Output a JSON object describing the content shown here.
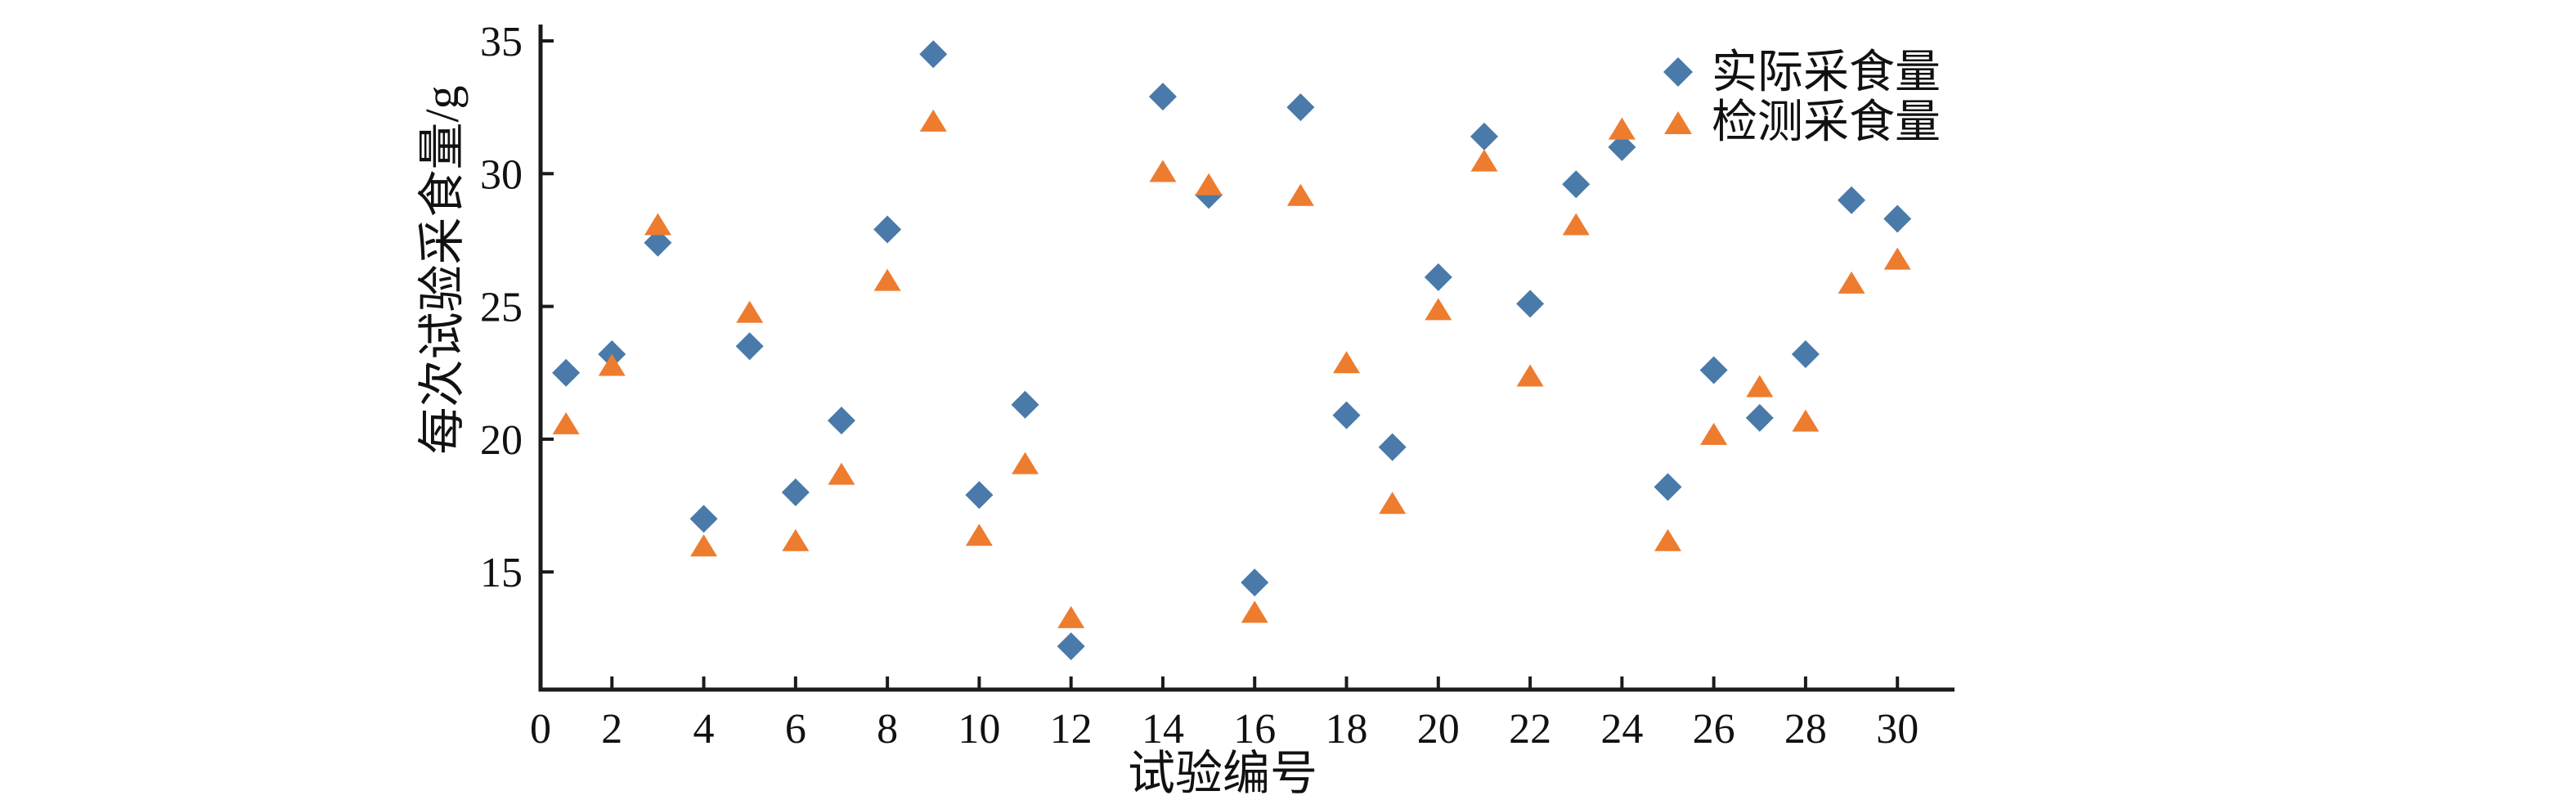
{
  "figure": {
    "background": "#ffffff",
    "axis_color": "#1a1a1a",
    "text_color": "#111111"
  },
  "chart_data": {
    "type": "scatter",
    "title": "",
    "xlabel": "试验编号",
    "ylabel": "每次试验采食量/g",
    "x_ticks": [
      0,
      2,
      4,
      6,
      8,
      10,
      12,
      14,
      16,
      18,
      20,
      22,
      24,
      26,
      28,
      30
    ],
    "y_ticks": [
      15,
      20,
      25,
      30,
      35
    ],
    "xlim": [
      0,
      31.2
    ],
    "ylim": [
      10.5,
      35.6
    ],
    "grid": false,
    "legend_position": "top-right",
    "series": [
      {
        "name": "实际采食量",
        "marker": "diamond",
        "color": "#497AA9",
        "points": [
          [
            1,
            22.5
          ],
          [
            2,
            23.2
          ],
          [
            3,
            27.4
          ],
          [
            4,
            17.0
          ],
          [
            5,
            23.5
          ],
          [
            6,
            18.0
          ],
          [
            7,
            20.7
          ],
          [
            8,
            27.9
          ],
          [
            9,
            34.5
          ],
          [
            10,
            17.9
          ],
          [
            11,
            21.3
          ],
          [
            12,
            12.2
          ],
          [
            14,
            32.9
          ],
          [
            15,
            29.2
          ],
          [
            16,
            14.6
          ],
          [
            17,
            32.5
          ],
          [
            18,
            20.9
          ],
          [
            19,
            19.7
          ],
          [
            20,
            26.1
          ],
          [
            21,
            31.4
          ],
          [
            22,
            25.1
          ],
          [
            23,
            29.6
          ],
          [
            24,
            31.0
          ],
          [
            25,
            18.2
          ],
          [
            26,
            22.6
          ],
          [
            27,
            20.8
          ],
          [
            28,
            23.2
          ],
          [
            29,
            29.0
          ],
          [
            30,
            28.3
          ]
        ]
      },
      {
        "name": "检测采食量",
        "marker": "triangle",
        "color": "#ED7C2F",
        "points": [
          [
            1,
            20.6
          ],
          [
            2,
            22.8
          ],
          [
            3,
            28.1
          ],
          [
            4,
            16.0
          ],
          [
            5,
            24.8
          ],
          [
            6,
            16.2
          ],
          [
            7,
            18.7
          ],
          [
            8,
            26.0
          ],
          [
            9,
            32.0
          ],
          [
            10,
            16.4
          ],
          [
            11,
            19.1
          ],
          [
            12,
            13.3
          ],
          [
            14,
            30.1
          ],
          [
            15,
            29.6
          ],
          [
            16,
            13.5
          ],
          [
            17,
            29.2
          ],
          [
            18,
            22.9
          ],
          [
            19,
            17.6
          ],
          [
            20,
            24.9
          ],
          [
            21,
            30.5
          ],
          [
            22,
            22.4
          ],
          [
            23,
            28.1
          ],
          [
            24,
            31.7
          ],
          [
            25,
            16.2
          ],
          [
            26,
            20.2
          ],
          [
            27,
            22.0
          ],
          [
            28,
            20.7
          ],
          [
            29,
            25.9
          ],
          [
            30,
            26.8
          ]
        ]
      }
    ]
  }
}
